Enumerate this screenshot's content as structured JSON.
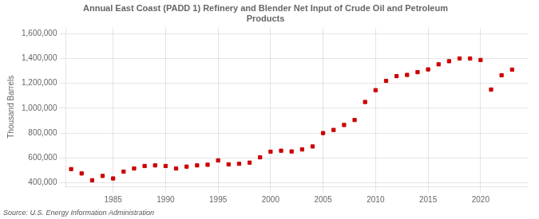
{
  "chart_data": {
    "type": "scatter",
    "title": "Annual East Coast (PADD 1) Refinery and Blender Net Input of Crude Oil and Petroleum\nProducts",
    "ylabel": "Thousand Barrels",
    "annotations": [
      "Source: U.S. Energy Information Administration"
    ],
    "color": "#cc0000",
    "marker": "square",
    "grid": true,
    "x": [
      1981,
      1982,
      1983,
      1984,
      1985,
      1986,
      1987,
      1988,
      1989,
      1990,
      1991,
      1992,
      1993,
      1994,
      1995,
      1996,
      1997,
      1998,
      1999,
      2000,
      2001,
      2002,
      2003,
      2004,
      2005,
      2006,
      2007,
      2008,
      2009,
      2010,
      2011,
      2012,
      2013,
      2014,
      2015,
      2016,
      2017,
      2018,
      2019,
      2020,
      2021,
      2022,
      2023
    ],
    "values": [
      510000,
      475000,
      420000,
      455000,
      435000,
      490000,
      515000,
      535000,
      540000,
      535000,
      515000,
      530000,
      540000,
      545000,
      580000,
      548000,
      553000,
      562000,
      605000,
      650000,
      658000,
      652000,
      668000,
      692000,
      800000,
      825000,
      865000,
      905000,
      1050000,
      1145000,
      1220000,
      1258000,
      1268000,
      1290000,
      1312000,
      1353000,
      1378000,
      1400000,
      1400000,
      1388000,
      1150000,
      1265000,
      1310000
    ],
    "xlim": [
      1980.5,
      2024.5
    ],
    "xticks": [
      1985,
      1990,
      1995,
      2000,
      2005,
      2010,
      2015,
      2020
    ],
    "ylim": [
      370000,
      1650000
    ],
    "yticks": [
      {
        "value": 400000,
        "label": "400,000"
      },
      {
        "value": 600000,
        "label": "600,000"
      },
      {
        "value": 800000,
        "label": "800,000"
      },
      {
        "value": 1000000,
        "label": "1,000,000"
      },
      {
        "value": 1200000,
        "label": "1,200,000"
      },
      {
        "value": 1400000,
        "label": "1,400,000"
      },
      {
        "value": 1600000,
        "label": "1,600,000"
      }
    ]
  }
}
